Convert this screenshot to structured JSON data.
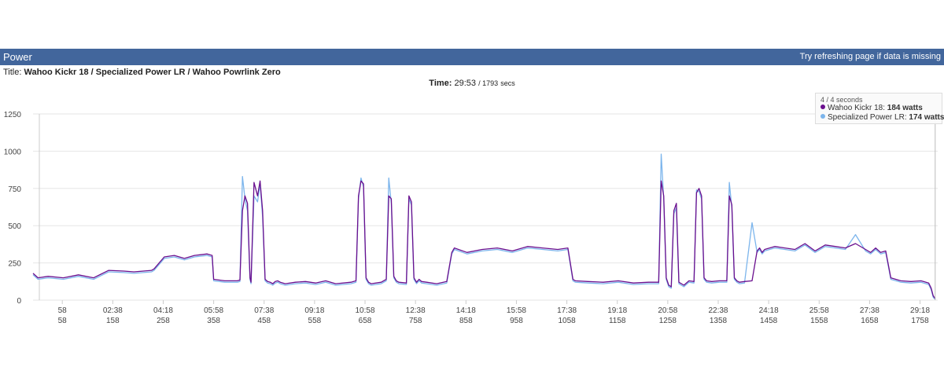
{
  "header": {
    "title": "Power",
    "hint": "Try refreshing page if data is missing"
  },
  "subtitle": {
    "label": "Title:",
    "value": "Wahoo Kickr 18 / Specialized Power LR / Wahoo Powrlink Zero"
  },
  "timebar": {
    "label": "Time:",
    "value": "29:53",
    "total": "/ 1793",
    "unit": "secs"
  },
  "tooltip": {
    "interval": "4 / 4 seconds",
    "rows": [
      {
        "name": "Wahoo Kickr 18:",
        "value": "184 watts",
        "color": "#6a0f8e"
      },
      {
        "name": "Specialized Power LR:",
        "value": "174 watts",
        "color": "#7cb5ec"
      }
    ]
  },
  "chart_data": {
    "type": "line",
    "title": "",
    "xlabel": "",
    "ylabel": "",
    "xlim": [
      0,
      1793
    ],
    "ylim": [
      0,
      1250
    ],
    "yticks": [
      0,
      250,
      500,
      750,
      1000,
      1250
    ],
    "ytick_labels": [
      "0",
      "250",
      "500",
      "750",
      "1000",
      "1250"
    ],
    "xticks": [
      58,
      158,
      258,
      358,
      458,
      558,
      658,
      758,
      858,
      958,
      1058,
      1158,
      1258,
      1358,
      1458,
      1558,
      1658,
      1758
    ],
    "xtick_time_labels": [
      "58",
      "02:38",
      "04:18",
      "05:58",
      "07:38",
      "09:18",
      "10:58",
      "12:38",
      "14:18",
      "15:58",
      "17:38",
      "19:18",
      "20:58",
      "22:38",
      "24:18",
      "25:58",
      "27:38",
      "29:18"
    ],
    "xtick_sec_labels": [
      "58",
      "158",
      "258",
      "358",
      "458",
      "558",
      "658",
      "758",
      "858",
      "958",
      "1058",
      "1158",
      "1258",
      "1358",
      "1458",
      "1558",
      "1658",
      "1758"
    ],
    "grid": true,
    "legend": "top-right",
    "series": [
      {
        "name": "Wahoo Kickr 18",
        "color": "#6a0f8e",
        "x": [
          0,
          10,
          30,
          60,
          90,
          120,
          150,
          180,
          200,
          235,
          240,
          260,
          280,
          300,
          320,
          345,
          355,
          358,
          380,
          405,
          410,
          415,
          420,
          425,
          430,
          432,
          438,
          445,
          450,
          455,
          460,
          465,
          470,
          475,
          480,
          485,
          490,
          500,
          520,
          540,
          560,
          580,
          600,
          630,
          640,
          645,
          650,
          655,
          660,
          665,
          670,
          690,
          700,
          705,
          710,
          715,
          720,
          725,
          740,
          745,
          750,
          755,
          760,
          765,
          770,
          780,
          800,
          820,
          830,
          835,
          860,
          890,
          920,
          950,
          980,
          1010,
          1040,
          1060,
          1070,
          1075,
          1100,
          1130,
          1160,
          1190,
          1220,
          1240,
          1245,
          1250,
          1255,
          1260,
          1265,
          1270,
          1275,
          1280,
          1290,
          1300,
          1310,
          1315,
          1320,
          1325,
          1330,
          1335,
          1345,
          1360,
          1375,
          1380,
          1385,
          1390,
          1395,
          1400,
          1410,
          1425,
          1435,
          1440,
          1445,
          1450,
          1470,
          1490,
          1510,
          1530,
          1550,
          1570,
          1590,
          1610,
          1630,
          1650,
          1660,
          1670,
          1680,
          1690,
          1700,
          1720,
          1740,
          1760,
          1770,
          1775,
          1780,
          1784,
          1788
        ],
        "y": [
          180,
          150,
          160,
          150,
          170,
          150,
          200,
          195,
          190,
          200,
          210,
          290,
          300,
          280,
          300,
          310,
          300,
          140,
          130,
          130,
          135,
          600,
          700,
          650,
          150,
          120,
          790,
          700,
          800,
          600,
          140,
          125,
          120,
          110,
          125,
          130,
          120,
          110,
          120,
          125,
          115,
          130,
          110,
          120,
          130,
          700,
          800,
          780,
          150,
          120,
          110,
          120,
          140,
          700,
          680,
          160,
          130,
          120,
          115,
          700,
          660,
          150,
          120,
          140,
          125,
          120,
          110,
          125,
          320,
          350,
          320,
          340,
          350,
          330,
          360,
          350,
          340,
          350,
          140,
          130,
          125,
          120,
          130,
          115,
          120,
          120,
          800,
          700,
          150,
          100,
          90,
          600,
          650,
          120,
          100,
          130,
          125,
          720,
          750,
          700,
          150,
          130,
          125,
          130,
          130,
          700,
          640,
          150,
          130,
          120,
          125,
          130,
          330,
          350,
          320,
          340,
          360,
          350,
          340,
          380,
          330,
          370,
          360,
          350,
          380,
          340,
          320,
          350,
          320,
          330,
          150,
          130,
          125,
          130,
          120,
          115,
          80,
          30,
          10
        ]
      },
      {
        "name": "Specialized Power LR",
        "color": "#7cb5ec",
        "x": [
          0,
          10,
          30,
          60,
          90,
          120,
          150,
          180,
          200,
          235,
          240,
          260,
          280,
          300,
          320,
          345,
          355,
          358,
          380,
          405,
          410,
          415,
          420,
          425,
          430,
          432,
          438,
          445,
          450,
          455,
          460,
          465,
          470,
          475,
          480,
          485,
          490,
          500,
          520,
          540,
          560,
          580,
          600,
          630,
          640,
          645,
          650,
          655,
          660,
          665,
          670,
          690,
          700,
          705,
          710,
          715,
          720,
          725,
          740,
          745,
          750,
          755,
          760,
          765,
          770,
          780,
          800,
          820,
          830,
          835,
          860,
          890,
          920,
          950,
          980,
          1010,
          1040,
          1060,
          1070,
          1075,
          1100,
          1130,
          1160,
          1190,
          1220,
          1240,
          1245,
          1250,
          1255,
          1260,
          1265,
          1270,
          1275,
          1280,
          1290,
          1300,
          1310,
          1315,
          1320,
          1325,
          1330,
          1335,
          1345,
          1360,
          1375,
          1380,
          1385,
          1390,
          1395,
          1400,
          1410,
          1425,
          1435,
          1440,
          1445,
          1450,
          1470,
          1490,
          1510,
          1530,
          1550,
          1570,
          1590,
          1610,
          1630,
          1650,
          1660,
          1670,
          1680,
          1690,
          1700,
          1720,
          1740,
          1760,
          1770,
          1775,
          1780,
          1784,
          1788
        ],
        "y": [
          170,
          140,
          150,
          140,
          160,
          140,
          190,
          185,
          180,
          190,
          200,
          280,
          290,
          270,
          290,
          300,
          290,
          130,
          120,
          120,
          125,
          830,
          680,
          600,
          140,
          110,
          700,
          660,
          780,
          560,
          130,
          115,
          110,
          100,
          115,
          120,
          110,
          100,
          110,
          115,
          105,
          120,
          100,
          110,
          120,
          680,
          820,
          760,
          140,
          110,
          100,
          110,
          130,
          820,
          650,
          150,
          120,
          110,
          105,
          680,
          640,
          140,
          110,
          130,
          115,
          110,
          100,
          115,
          310,
          340,
          310,
          330,
          340,
          320,
          350,
          340,
          330,
          340,
          130,
          120,
          115,
          110,
          120,
          105,
          110,
          110,
          980,
          680,
          140,
          90,
          80,
          580,
          620,
          110,
          90,
          120,
          115,
          740,
          730,
          680,
          140,
          120,
          115,
          120,
          120,
          790,
          620,
          140,
          120,
          110,
          115,
          520,
          320,
          340,
          310,
          330,
          350,
          340,
          330,
          370,
          320,
          360,
          350,
          340,
          440,
          330,
          310,
          340,
          310,
          320,
          140,
          120,
          115,
          120,
          110,
          105,
          70,
          20,
          5
        ]
      }
    ]
  }
}
